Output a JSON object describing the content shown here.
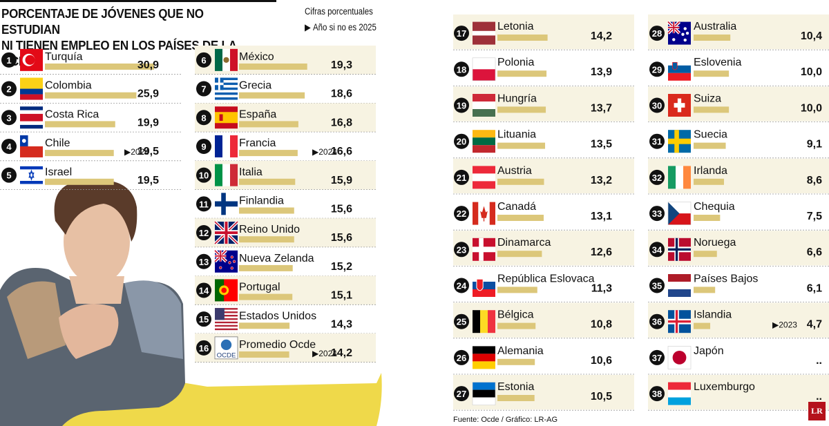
{
  "title_lines": [
    "PORCENTAJE DE JÓVENES QUE NO ESTUDIAN",
    "NI TIENEN EMPLEO EN LOS PAÍSES DE LA OCDE"
  ],
  "unit_note": "Cifras porcentuales",
  "year_note": "Año si no es 2025",
  "source": "Fuente: Ocde / Gráfico: LR-AG",
  "logo": "LR",
  "colors": {
    "bar": "#dcc77a",
    "shade": "#f7f3e2",
    "rank_circle": "#111111"
  },
  "chart_data": {
    "type": "bar",
    "orientation": "horizontal",
    "unit": "%",
    "xlim": [
      0,
      30.9
    ],
    "items": [
      {
        "rank": "1",
        "country": "Turquía",
        "value": 30.9,
        "label": "30,9",
        "year": "",
        "flag": "tr"
      },
      {
        "rank": "2",
        "country": "Colombia",
        "value": 25.9,
        "label": "25,9",
        "year": "",
        "flag": "co"
      },
      {
        "rank": "3",
        "country": "Costa Rica",
        "value": 19.9,
        "label": "19,9",
        "year": "",
        "flag": "cr"
      },
      {
        "rank": "4",
        "country": "Chile",
        "value": 19.5,
        "label": "19,5",
        "year": "2024",
        "flag": "cl"
      },
      {
        "rank": "5",
        "country": "Israel",
        "value": 19.5,
        "label": "19,5",
        "year": "",
        "flag": "il"
      },
      {
        "rank": "6",
        "country": "México",
        "value": 19.3,
        "label": "19,3",
        "year": "",
        "flag": "mx"
      },
      {
        "rank": "7",
        "country": "Grecia",
        "value": 18.6,
        "label": "18,6",
        "year": "",
        "flag": "gr"
      },
      {
        "rank": "8",
        "country": "España",
        "value": 16.8,
        "label": "16,8",
        "year": "",
        "flag": "es"
      },
      {
        "rank": "9",
        "country": "Francia",
        "value": 16.6,
        "label": "16,6",
        "year": "2024",
        "flag": "fr"
      },
      {
        "rank": "10",
        "country": "Italia",
        "value": 15.9,
        "label": "15,9",
        "year": "",
        "flag": "it"
      },
      {
        "rank": "11",
        "country": "Finlandia",
        "value": 15.6,
        "label": "15,6",
        "year": "",
        "flag": "fi"
      },
      {
        "rank": "12",
        "country": "Reino Unido",
        "value": 15.6,
        "label": "15,6",
        "year": "",
        "flag": "gb"
      },
      {
        "rank": "13",
        "country": "Nueva Zelanda",
        "value": 15.2,
        "label": "15,2",
        "year": "",
        "flag": "nz"
      },
      {
        "rank": "14",
        "country": "Portugal",
        "value": 15.1,
        "label": "15,1",
        "year": "",
        "flag": "pt"
      },
      {
        "rank": "15",
        "country": "Estados Unidos",
        "value": 14.3,
        "label": "14,3",
        "year": "",
        "flag": "us"
      },
      {
        "rank": "16",
        "country": "Promedio Ocde",
        "value": 14.2,
        "label": "14,2",
        "year": "2024",
        "flag": "oecd",
        "flag_text": "OCDE"
      },
      {
        "rank": "17",
        "country": "Letonia",
        "value": 14.2,
        "label": "14,2",
        "year": "",
        "flag": "lv"
      },
      {
        "rank": "18",
        "country": "Polonia",
        "value": 13.9,
        "label": "13,9",
        "year": "",
        "flag": "pl"
      },
      {
        "rank": "19",
        "country": "Hungría",
        "value": 13.7,
        "label": "13,7",
        "year": "",
        "flag": "hu"
      },
      {
        "rank": "20",
        "country": "Lituania",
        "value": 13.5,
        "label": "13,5",
        "year": "",
        "flag": "lt"
      },
      {
        "rank": "21",
        "country": "Austria",
        "value": 13.2,
        "label": "13,2",
        "year": "",
        "flag": "at"
      },
      {
        "rank": "22",
        "country": "Canadá",
        "value": 13.1,
        "label": "13,1",
        "year": "",
        "flag": "ca"
      },
      {
        "rank": "23",
        "country": "Dinamarca",
        "value": 12.6,
        "label": "12,6",
        "year": "",
        "flag": "dk"
      },
      {
        "rank": "24",
        "country": "República Eslovaca",
        "value": 11.3,
        "label": "11,3",
        "year": "",
        "flag": "sk"
      },
      {
        "rank": "25",
        "country": "Bélgica",
        "value": 10.8,
        "label": "10,8",
        "year": "",
        "flag": "be"
      },
      {
        "rank": "26",
        "country": "Alemania",
        "value": 10.6,
        "label": "10,6",
        "year": "",
        "flag": "de"
      },
      {
        "rank": "27",
        "country": "Estonia",
        "value": 10.5,
        "label": "10,5",
        "year": "",
        "flag": "ee"
      },
      {
        "rank": "28",
        "country": "Australia",
        "value": 10.4,
        "label": "10,4",
        "year": "",
        "flag": "au"
      },
      {
        "rank": "29",
        "country": "Eslovenia",
        "value": 10.0,
        "label": "10,0",
        "year": "",
        "flag": "si"
      },
      {
        "rank": "30",
        "country": "Suiza",
        "value": 10.0,
        "label": "10,0",
        "year": "",
        "flag": "ch"
      },
      {
        "rank": "31",
        "country": "Suecia",
        "value": 9.1,
        "label": "9,1",
        "year": "",
        "flag": "se"
      },
      {
        "rank": "32",
        "country": "Irlanda",
        "value": 8.6,
        "label": "8,6",
        "year": "",
        "flag": "ie"
      },
      {
        "rank": "33",
        "country": "Chequia",
        "value": 7.5,
        "label": "7,5",
        "year": "",
        "flag": "cz"
      },
      {
        "rank": "34",
        "country": "Noruega",
        "value": 6.6,
        "label": "6,6",
        "year": "",
        "flag": "no"
      },
      {
        "rank": "35",
        "country": "Países Bajos",
        "value": 6.1,
        "label": "6,1",
        "year": "",
        "flag": "nl"
      },
      {
        "rank": "36",
        "country": "Islandia",
        "value": 4.7,
        "label": "4,7",
        "year": "2023",
        "flag": "is"
      },
      {
        "rank": "37",
        "country": "Japón",
        "value": null,
        "label": "..",
        "year": "",
        "flag": "jp"
      },
      {
        "rank": "38",
        "country": "Luxemburgo",
        "value": null,
        "label": "..",
        "year": "",
        "flag": "lu"
      }
    ]
  }
}
